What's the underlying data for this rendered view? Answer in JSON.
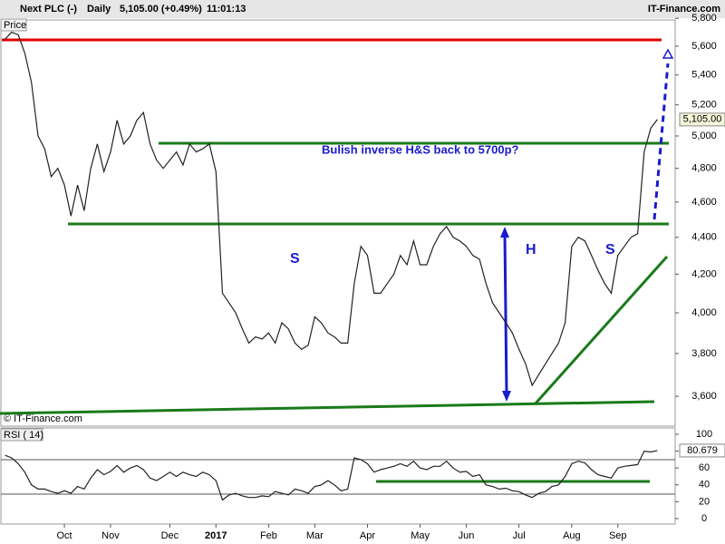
{
  "header": {
    "symbol": "Next PLC (-)",
    "period": "Daily",
    "change": "5,105.00 (+0.49%)",
    "time": "11:01:13",
    "brand": "IT-Finance.com"
  },
  "chart_data": [
    {
      "type": "line",
      "y_label": "Price",
      "copyright": "© IT-Finance.com",
      "color": "#222222",
      "log_scale": true,
      "grid": false,
      "annotations": {
        "text": "Bulish inverse H&S back to 5700p?",
        "left_shoulder": "S",
        "head": "H",
        "right_shoulder": "S"
      },
      "categories": [
        null,
        null,
        null,
        null,
        null,
        null,
        null,
        null,
        null,
        "Oct",
        null,
        null,
        null,
        null,
        null,
        null,
        "Nov",
        null,
        null,
        null,
        null,
        null,
        null,
        null,
        null,
        "Dec",
        null,
        null,
        null,
        null,
        null,
        null,
        "2017",
        null,
        null,
        null,
        null,
        null,
        null,
        null,
        "Feb",
        null,
        null,
        null,
        null,
        null,
        null,
        "Mar",
        null,
        null,
        null,
        null,
        null,
        null,
        null,
        "Apr",
        null,
        null,
        null,
        null,
        null,
        null,
        null,
        "May",
        null,
        null,
        null,
        null,
        null,
        null,
        "Jun",
        null,
        null,
        null,
        null,
        null,
        null,
        null,
        "Jul",
        null,
        null,
        null,
        null,
        null,
        null,
        null,
        "Aug",
        null,
        null,
        null,
        null,
        null,
        null,
        "Sep",
        null,
        null,
        null,
        null,
        null,
        null
      ],
      "values": [
        5650,
        5700,
        5680,
        5550,
        5350,
        5000,
        4920,
        4750,
        4800,
        4700,
        4520,
        4700,
        4550,
        4800,
        4950,
        4780,
        4900,
        5100,
        4950,
        5000,
        5100,
        5150,
        4950,
        4850,
        4800,
        4850,
        4900,
        4820,
        4950,
        4900,
        4920,
        4950,
        4780,
        4100,
        4050,
        4000,
        3920,
        3850,
        3880,
        3870,
        3900,
        3850,
        3950,
        3920,
        3850,
        3820,
        3840,
        3980,
        3950,
        3900,
        3880,
        3850,
        3850,
        4150,
        4350,
        4300,
        4100,
        4100,
        4150,
        4200,
        4300,
        4250,
        4380,
        4250,
        4250,
        4350,
        4420,
        4460,
        4400,
        4380,
        4350,
        4300,
        4280,
        4150,
        4050,
        4000,
        3950,
        3900,
        3820,
        3750,
        3650,
        3700,
        3750,
        3800,
        3850,
        3950,
        4350,
        4400,
        4380,
        4300,
        4220,
        4150,
        4100,
        4300,
        4350,
        4400,
        4420,
        4900,
        5050,
        5105
      ],
      "last_label": "5,105.00",
      "ylim": [
        3475,
        5815
      ],
      "yticks": [
        {
          "value": 3600,
          "label": "3,600"
        },
        {
          "value": 3800,
          "label": "3,800"
        },
        {
          "value": 4000,
          "label": "4,000"
        },
        {
          "value": 4200,
          "label": "4,200"
        },
        {
          "value": 4400,
          "label": "4,400"
        },
        {
          "value": 4600,
          "label": "4,600"
        },
        {
          "value": 4800,
          "label": "4,800"
        },
        {
          "value": 5000,
          "label": "5,000"
        },
        {
          "value": 5200,
          "label": "5,200"
        },
        {
          "value": 5400,
          "label": "5,400"
        },
        {
          "value": 5600,
          "label": "5,600"
        },
        {
          "value": 5800,
          "label": "5,800"
        }
      ]
    },
    {
      "type": "line",
      "title": "RSI ( 14)",
      "color": "#222222",
      "values": [
        75,
        72,
        65,
        55,
        40,
        35,
        35,
        32,
        30,
        33,
        30,
        38,
        35,
        48,
        58,
        52,
        56,
        63,
        55,
        60,
        63,
        58,
        48,
        45,
        50,
        55,
        50,
        55,
        52,
        50,
        55,
        52,
        45,
        22,
        28,
        30,
        27,
        25,
        25,
        27,
        26,
        32,
        30,
        28,
        35,
        33,
        30,
        38,
        40,
        45,
        40,
        33,
        35,
        72,
        70,
        65,
        55,
        58,
        60,
        62,
        65,
        62,
        68,
        60,
        58,
        62,
        62,
        68,
        60,
        55,
        56,
        50,
        52,
        40,
        38,
        35,
        36,
        33,
        32,
        28,
        25,
        30,
        32,
        38,
        40,
        50,
        65,
        68,
        66,
        58,
        52,
        50,
        48,
        60,
        62,
        63,
        64,
        80,
        79,
        80.679
      ],
      "last_label": "80.679",
      "ylim": [
        -6.5,
        107.5
      ],
      "yticks": [
        0,
        20,
        40,
        60,
        80,
        100
      ]
    }
  ]
}
